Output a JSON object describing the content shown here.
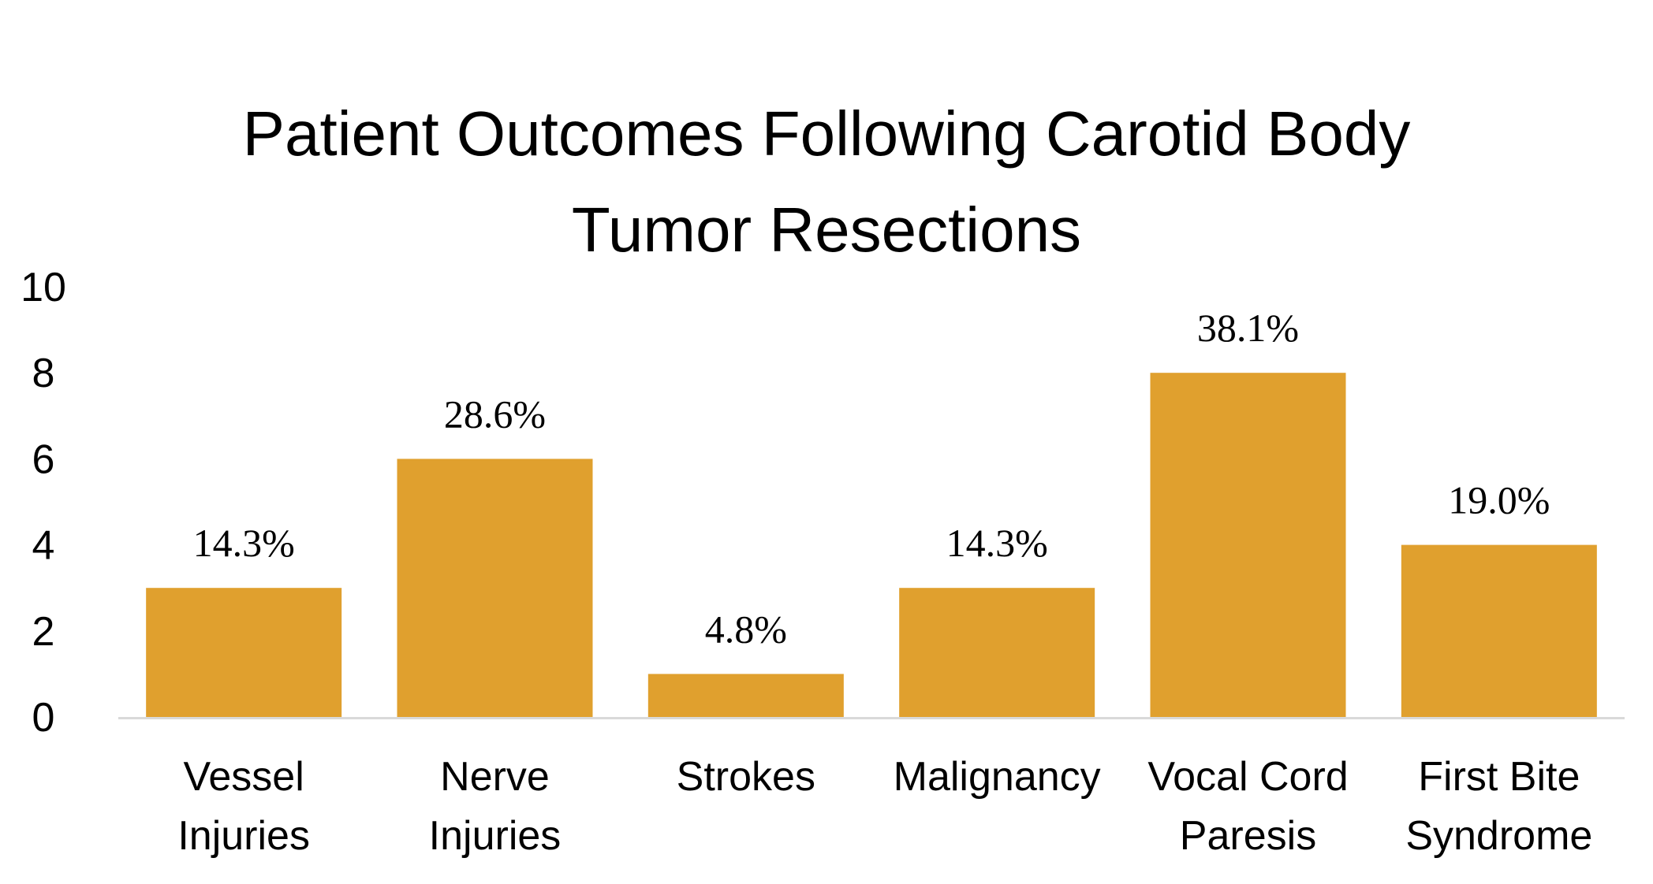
{
  "chart_data": {
    "type": "bar",
    "title_lines": [
      "Patient Outcomes Following Carotid Body",
      "Tumor Resections"
    ],
    "categories": [
      [
        "Vessel",
        "Injuries"
      ],
      [
        "Nerve",
        "Injuries"
      ],
      [
        "Strokes"
      ],
      [
        "Malignancy"
      ],
      [
        "Vocal Cord",
        "Paresis"
      ],
      [
        "First Bite",
        "Syndrome"
      ]
    ],
    "values": [
      3,
      6,
      1,
      3,
      8,
      4
    ],
    "data_labels": [
      "14.3%",
      "28.6%",
      "4.8%",
      "14.3%",
      "38.1%",
      "19.0%"
    ],
    "ylim": [
      0,
      10
    ],
    "yticks": [
      "0",
      "2",
      "4",
      "6",
      "8",
      "10"
    ],
    "bar_color": "#E0A02E",
    "axis_color": "#D9D9D9",
    "grid": false,
    "legend": "none"
  }
}
